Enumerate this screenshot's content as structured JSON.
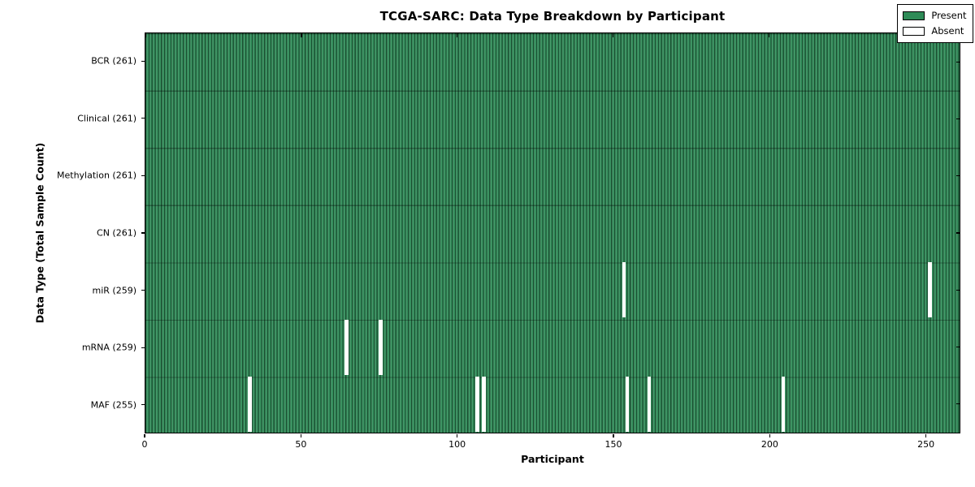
{
  "chart_data": {
    "type": "heatmap",
    "title": "TCGA-SARC: Data Type Breakdown by Participant",
    "xlabel": "Participant",
    "ylabel": "Data Type (Total Sample Count)",
    "x_ticks": [
      0,
      50,
      100,
      150,
      200,
      250
    ],
    "x_range": [
      0,
      261
    ],
    "n_participants": 261,
    "n_rows": 7,
    "grid": false,
    "legend_position": "upper right",
    "colors": {
      "present": "#2E8B57",
      "absent": "#FFFFFF",
      "cell_edge": "#0F3D26",
      "plot_border": "#000000"
    },
    "legend": [
      {
        "label": "Present",
        "color": "#2E8B57"
      },
      {
        "label": "Absent",
        "color": "#FFFFFF"
      }
    ],
    "rows": [
      {
        "data_type": "BCR",
        "label": "BCR (261)",
        "present_count": 261,
        "absent_count": 0,
        "absent_participants": []
      },
      {
        "data_type": "Clinical",
        "label": "Clinical (261)",
        "present_count": 261,
        "absent_count": 0,
        "absent_participants": []
      },
      {
        "data_type": "Methylation",
        "label": "Methylation (261)",
        "present_count": 261,
        "absent_count": 0,
        "absent_participants": []
      },
      {
        "data_type": "CN",
        "label": "CN (261)",
        "present_count": 261,
        "absent_count": 0,
        "absent_participants": []
      },
      {
        "data_type": "miR",
        "label": "miR (259)",
        "present_count": 259,
        "absent_count": 2,
        "absent_participants": [
          153,
          251
        ]
      },
      {
        "data_type": "mRNA",
        "label": "mRNA (259)",
        "present_count": 259,
        "absent_count": 2,
        "absent_participants": [
          64,
          75
        ]
      },
      {
        "data_type": "MAF",
        "label": "MAF (255)",
        "present_count": 255,
        "absent_count": 6,
        "absent_participants": [
          33,
          106,
          108,
          154,
          161,
          204
        ]
      }
    ]
  }
}
